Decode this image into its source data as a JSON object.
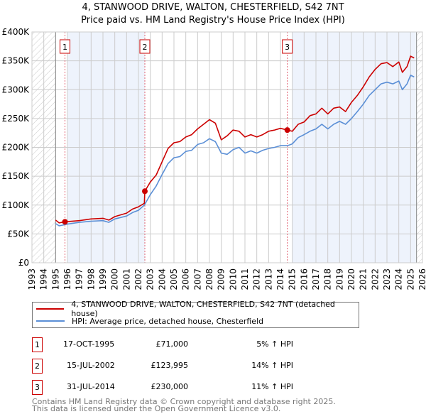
{
  "title_line1": "4, STANWOOD DRIVE, WALTON, CHESTERFIELD, S42 7NT",
  "title_line2": "Price paid vs. HM Land Registry's House Price Index (HPI)",
  "colors": {
    "property": "#cc0000",
    "hpi": "#5b8fd6",
    "shade": "#eef3fc",
    "grid": "#cccccc"
  },
  "chart_data": {
    "type": "line",
    "title": "Price paid vs. HM Land Registry's House Price Index (HPI)",
    "xlim": [
      1993,
      2026
    ],
    "ylim": [
      0,
      400000
    ],
    "yticks": [
      {
        "v": 0,
        "label": "£0"
      },
      {
        "v": 50000,
        "label": "£50K"
      },
      {
        "v": 100000,
        "label": "£100K"
      },
      {
        "v": 150000,
        "label": "£150K"
      },
      {
        "v": 200000,
        "label": "£200K"
      },
      {
        "v": 250000,
        "label": "£250K"
      },
      {
        "v": 300000,
        "label": "£300K"
      },
      {
        "v": 350000,
        "label": "£350K"
      },
      {
        "v": 400000,
        "label": "£400K"
      }
    ],
    "xticks": [
      "1993",
      "1994",
      "1995",
      "1996",
      "1997",
      "1998",
      "1999",
      "2000",
      "2001",
      "2002",
      "2003",
      "2004",
      "2005",
      "2006",
      "2007",
      "2008",
      "2009",
      "2010",
      "2011",
      "2012",
      "2013",
      "2014",
      "2015",
      "2016",
      "2017",
      "2018",
      "2019",
      "2020",
      "2021",
      "2022",
      "2023",
      "2024",
      "2025",
      "2026"
    ],
    "grid": true,
    "hatched_ranges": [
      [
        1993,
        1995
      ],
      [
        2025.5,
        2026
      ]
    ],
    "shaded_ranges": [
      [
        1996,
        2002.54
      ],
      [
        2015,
        2025.5
      ]
    ],
    "series": [
      {
        "name": "4, STANWOOD DRIVE, WALTON, CHESTERFIELD, S42 7NT (detached house)",
        "x": [
          1995.0,
          1995.3,
          1995.8,
          1997,
          1998,
          1999,
          1999.5,
          2000,
          2001,
          2001.5,
          2002,
          2002.5,
          2002.54,
          2003,
          2003.5,
          2004,
          2004.5,
          2005,
          2005.5,
          2006,
          2006.5,
          2007,
          2007.5,
          2008,
          2008.5,
          2009,
          2009.5,
          2010,
          2010.5,
          2011,
          2011.5,
          2012,
          2012.5,
          2013,
          2013.5,
          2014,
          2014.58,
          2015,
          2015.5,
          2016,
          2016.5,
          2017,
          2017.5,
          2018,
          2018.5,
          2019,
          2019.5,
          2020,
          2020.5,
          2021,
          2021.5,
          2022,
          2022.5,
          2023,
          2023.5,
          2024,
          2024.3,
          2024.7,
          2025,
          2025.3
        ],
        "y": [
          74000,
          69000,
          71000,
          73000,
          76000,
          77000,
          74000,
          80000,
          86000,
          93000,
          97000,
          103000,
          123995,
          140000,
          152000,
          175000,
          198000,
          208000,
          210000,
          218000,
          222000,
          232000,
          240000,
          248000,
          242000,
          213000,
          220000,
          230000,
          228000,
          218000,
          222000,
          218000,
          222000,
          228000,
          230000,
          233000,
          230000,
          228000,
          240000,
          244000,
          255000,
          258000,
          268000,
          258000,
          268000,
          270000,
          262000,
          278000,
          290000,
          305000,
          322000,
          335000,
          345000,
          347000,
          340000,
          348000,
          330000,
          340000,
          358000,
          355000
        ]
      },
      {
        "name": "HPI: Average price, detached house, Chesterfield",
        "x": [
          1995.0,
          1995.3,
          1996,
          1997,
          1998,
          1999,
          1999.5,
          2000,
          2001,
          2001.5,
          2002,
          2002.5,
          2003,
          2003.5,
          2004,
          2004.5,
          2005,
          2005.5,
          2006,
          2006.5,
          2007,
          2007.5,
          2008,
          2008.5,
          2009,
          2009.5,
          2010,
          2010.5,
          2011,
          2011.5,
          2012,
          2012.5,
          2013,
          2013.5,
          2014,
          2014.6,
          2015,
          2015.5,
          2016,
          2016.5,
          2017,
          2017.5,
          2018,
          2018.5,
          2019,
          2019.5,
          2020,
          2020.5,
          2021,
          2021.5,
          2022,
          2022.5,
          2023,
          2023.5,
          2024,
          2024.3,
          2024.7,
          2025,
          2025.3
        ],
        "y": [
          68000,
          64000,
          67000,
          70000,
          72000,
          73000,
          70000,
          76000,
          81000,
          87000,
          91000,
          100000,
          118000,
          133000,
          153000,
          172000,
          182000,
          184000,
          193000,
          195000,
          205000,
          208000,
          215000,
          210000,
          190000,
          188000,
          196000,
          200000,
          190000,
          194000,
          190000,
          195000,
          198000,
          200000,
          203000,
          203000,
          206000,
          217000,
          222000,
          228000,
          232000,
          240000,
          232000,
          240000,
          245000,
          240000,
          250000,
          262000,
          275000,
          290000,
          300000,
          310000,
          313000,
          310000,
          315000,
          300000,
          310000,
          325000,
          322000
        ]
      }
    ],
    "sales": [
      {
        "num": "1",
        "x": 1995.79,
        "y": 71000
      },
      {
        "num": "2",
        "x": 2002.54,
        "y": 123995
      },
      {
        "num": "3",
        "x": 2014.58,
        "y": 230000
      }
    ]
  },
  "legend": [
    {
      "label": "4, STANWOOD DRIVE, WALTON, CHESTERFIELD, S42 7NT (detached house)"
    },
    {
      "label": "HPI: Average price, detached house, Chesterfield"
    }
  ],
  "transactions": [
    {
      "num": "1",
      "date": "17-OCT-1995",
      "price": "£71,000",
      "hpi": "5% ↑ HPI"
    },
    {
      "num": "2",
      "date": "15-JUL-2002",
      "price": "£123,995",
      "hpi": "14% ↑ HPI"
    },
    {
      "num": "3",
      "date": "31-JUL-2014",
      "price": "£230,000",
      "hpi": "11% ↑ HPI"
    }
  ],
  "footer": {
    "line1": "Contains HM Land Registry data © Crown copyright and database right 2025.",
    "line2": "This data is licensed under the Open Government Licence v3.0."
  }
}
